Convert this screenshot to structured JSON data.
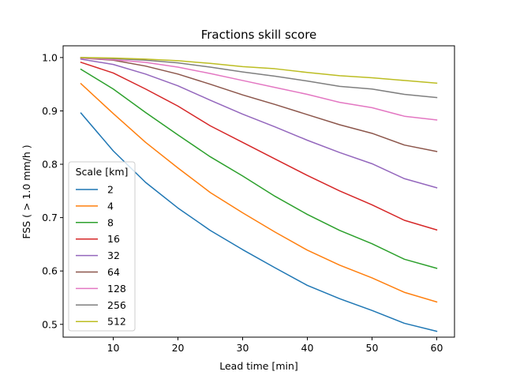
{
  "chart_data": {
    "type": "line",
    "title": "Fractions skill score",
    "xlabel": "Lead time [min]",
    "ylabel": "FSS ( > 1.0 mm/h )",
    "xlim": [
      2.25,
      62.75
    ],
    "ylim": [
      0.476,
      1.022
    ],
    "xticks": [
      10,
      20,
      30,
      40,
      50,
      60
    ],
    "yticks": [
      0.5,
      0.6,
      0.7,
      0.8,
      0.9,
      1.0
    ],
    "ytick_labels": [
      "0.5",
      "0.6",
      "0.7",
      "0.8",
      "0.9",
      "1.0"
    ],
    "grid": false,
    "legend": {
      "title": "Scale [km]",
      "placement": "lower-left"
    },
    "x": [
      5,
      10,
      15,
      20,
      25,
      30,
      35,
      40,
      45,
      50,
      55,
      60
    ],
    "series": [
      {
        "name": "2",
        "color": "#1f77b4",
        "values": [
          0.896,
          0.825,
          0.766,
          0.718,
          0.676,
          0.64,
          0.606,
          0.573,
          0.548,
          0.526,
          0.502,
          0.487
        ]
      },
      {
        "name": "4",
        "color": "#ff7f0e",
        "values": [
          0.951,
          0.895,
          0.841,
          0.793,
          0.747,
          0.709,
          0.673,
          0.639,
          0.611,
          0.587,
          0.56,
          0.542
        ]
      },
      {
        "name": "8",
        "color": "#2ca02c",
        "values": [
          0.978,
          0.941,
          0.897,
          0.855,
          0.814,
          0.778,
          0.74,
          0.706,
          0.676,
          0.651,
          0.622,
          0.605
        ]
      },
      {
        "name": "16",
        "color": "#d62728",
        "values": [
          0.991,
          0.971,
          0.941,
          0.909,
          0.872,
          0.841,
          0.81,
          0.779,
          0.75,
          0.724,
          0.695,
          0.677
        ]
      },
      {
        "name": "32",
        "color": "#9467bd",
        "values": [
          0.997,
          0.987,
          0.969,
          0.947,
          0.92,
          0.894,
          0.87,
          0.845,
          0.822,
          0.801,
          0.773,
          0.756
        ]
      },
      {
        "name": "64",
        "color": "#8c564b",
        "values": [
          0.999,
          0.995,
          0.984,
          0.969,
          0.95,
          0.93,
          0.912,
          0.893,
          0.874,
          0.858,
          0.836,
          0.824
        ]
      },
      {
        "name": "128",
        "color": "#e377c2",
        "values": [
          0.999,
          0.996,
          0.991,
          0.982,
          0.97,
          0.957,
          0.944,
          0.931,
          0.916,
          0.906,
          0.89,
          0.883
        ]
      },
      {
        "name": "256",
        "color": "#7f7f7f",
        "values": [
          1.0,
          0.998,
          0.995,
          0.99,
          0.982,
          0.973,
          0.965,
          0.956,
          0.946,
          0.941,
          0.931,
          0.925
        ]
      },
      {
        "name": "512",
        "color": "#bcbd22",
        "values": [
          1.0,
          0.999,
          0.997,
          0.994,
          0.989,
          0.983,
          0.979,
          0.972,
          0.966,
          0.962,
          0.957,
          0.952
        ]
      }
    ]
  }
}
